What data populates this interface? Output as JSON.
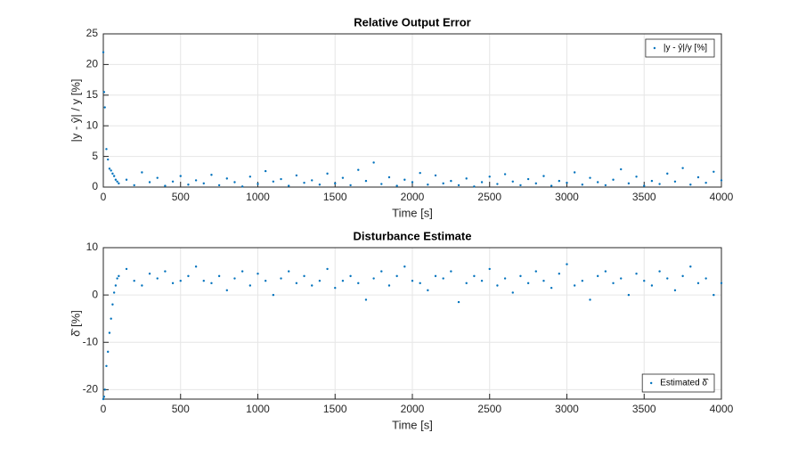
{
  "chart_data": [
    {
      "type": "scatter",
      "title": "Relative Output Error",
      "x_label": "Time [s]",
      "y_label": "|y - ŷ| / y [%]",
      "xlim": [
        0,
        4000
      ],
      "xticks": [
        0,
        500,
        1000,
        1500,
        2000,
        2500,
        3000,
        3500,
        4000
      ],
      "ylim": [
        0,
        25
      ],
      "yticks": [
        0,
        5,
        10,
        15,
        20,
        25
      ],
      "grid": true,
      "legend": "northeast",
      "series": [
        {
          "name": "|y - ŷ|/y [%]",
          "color": "#0072bd",
          "x": [
            0,
            5,
            10,
            20,
            30,
            40,
            50,
            60,
            70,
            80,
            90,
            100,
            150,
            200,
            250,
            300,
            350,
            400,
            450,
            500,
            550,
            600,
            650,
            700,
            750,
            800,
            850,
            900,
            950,
            1000,
            1050,
            1100,
            1150,
            1200,
            1250,
            1300,
            1350,
            1400,
            1450,
            1500,
            1550,
            1600,
            1650,
            1700,
            1750,
            1800,
            1850,
            1900,
            1950,
            2000,
            2050,
            2100,
            2150,
            2200,
            2250,
            2300,
            2350,
            2400,
            2450,
            2500,
            2550,
            2600,
            2650,
            2700,
            2750,
            2800,
            2850,
            2900,
            2950,
            3000,
            3050,
            3100,
            3150,
            3200,
            3250,
            3300,
            3350,
            3400,
            3450,
            3500,
            3550,
            3600,
            3650,
            3700,
            3750,
            3800,
            3850,
            3900,
            3950,
            4000
          ],
          "values": [
            22,
            15.5,
            13,
            6.2,
            4.5,
            3,
            2.7,
            2.2,
            1.8,
            1.2,
            0.9,
            0.6,
            1.2,
            0.3,
            2.4,
            0.8,
            1.5,
            0.2,
            0.9,
            1.8,
            0.4,
            1.1,
            0.6,
            2.0,
            0.3,
            1.4,
            0.8,
            0.1,
            1.7,
            0.5,
            2.6,
            0.9,
            1.3,
            0.2,
            1.9,
            0.7,
            1.1,
            0.4,
            2.2,
            0.6,
            1.5,
            0.3,
            2.8,
            1.0,
            4.0,
            0.5,
            1.6,
            0.2,
            1.2,
            0.8,
            2.3,
            0.4,
            1.9,
            0.6,
            1.0,
            0.3,
            1.4,
            0.1,
            0.8,
            1.7,
            0.5,
            2.1,
            0.9,
            0.3,
            1.3,
            0.6,
            1.8,
            0.2,
            1.0,
            0.7,
            2.4,
            0.4,
            1.5,
            0.8,
            0.3,
            1.2,
            2.9,
            0.6,
            1.7,
            0.2,
            1.0,
            0.5,
            2.2,
            0.9,
            3.1,
            0.4,
            1.6,
            0.7,
            2.5,
            1.1
          ]
        }
      ]
    },
    {
      "type": "scatter",
      "title": "Disturbance Estimate",
      "x_label": "Time [s]",
      "y_label": "δ̂ [%]",
      "xlim": [
        0,
        4000
      ],
      "xticks": [
        0,
        500,
        1000,
        1500,
        2000,
        2500,
        3000,
        3500,
        4000
      ],
      "ylim": [
        -22,
        10
      ],
      "yticks": [
        -20,
        -10,
        0,
        10
      ],
      "grid": true,
      "legend": "southeast",
      "series": [
        {
          "name": "Estimated δ̂",
          "color": "#0072bd",
          "x": [
            0,
            5,
            10,
            20,
            30,
            40,
            50,
            60,
            70,
            80,
            90,
            100,
            150,
            200,
            250,
            300,
            350,
            400,
            450,
            500,
            550,
            600,
            650,
            700,
            750,
            800,
            850,
            900,
            950,
            1000,
            1050,
            1100,
            1150,
            1200,
            1250,
            1300,
            1350,
            1400,
            1450,
            1500,
            1550,
            1600,
            1650,
            1700,
            1750,
            1800,
            1850,
            1900,
            1950,
            2000,
            2050,
            2100,
            2150,
            2200,
            2250,
            2300,
            2350,
            2400,
            2450,
            2500,
            2550,
            2600,
            2650,
            2700,
            2750,
            2800,
            2850,
            2900,
            2950,
            3000,
            3050,
            3100,
            3150,
            3200,
            3250,
            3300,
            3350,
            3400,
            3450,
            3500,
            3550,
            3600,
            3650,
            3700,
            3750,
            3800,
            3850,
            3900,
            3950,
            4000
          ],
          "values": [
            -22,
            -21.5,
            -20,
            -15,
            -12,
            -8,
            -5,
            -2,
            0.5,
            2,
            3.5,
            4,
            5.5,
            3,
            2,
            4.5,
            3.5,
            5,
            2.5,
            3,
            4,
            6,
            3,
            2.5,
            4,
            1,
            3.5,
            5,
            2,
            4.5,
            3,
            0,
            3.5,
            5,
            2.5,
            4,
            2,
            3,
            5.5,
            1.5,
            3,
            4,
            2.5,
            -1,
            3.5,
            5,
            2,
            4,
            6,
            3,
            2.5,
            1,
            4,
            3.5,
            5,
            -1.5,
            2.5,
            4,
            3,
            5.5,
            2,
            3.5,
            0.5,
            4,
            2.5,
            5,
            3,
            1.5,
            4.5,
            6.5,
            2,
            3,
            -1,
            4,
            5,
            2.5,
            3.5,
            0,
            4.5,
            3,
            2,
            5,
            3.5,
            1,
            4,
            6,
            2.5,
            3.5,
            0,
            2.5
          ]
        }
      ]
    }
  ]
}
